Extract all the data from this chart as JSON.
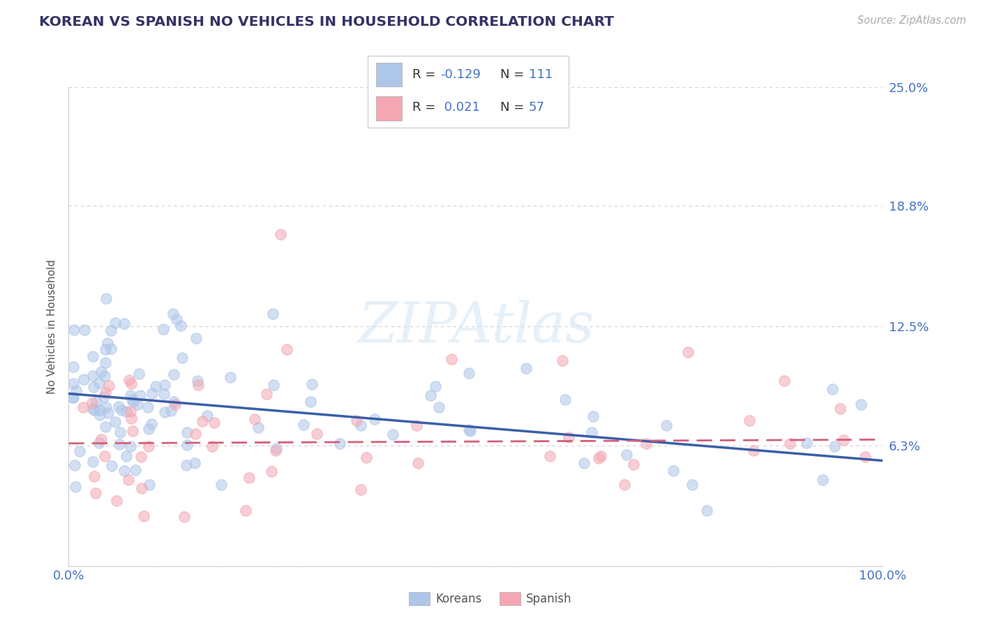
{
  "title": "KOREAN VS SPANISH NO VEHICLES IN HOUSEHOLD CORRELATION CHART",
  "source": "Source: ZipAtlas.com",
  "ylabel": "No Vehicles in Household",
  "legend_labels": [
    "Koreans",
    "Spanish"
  ],
  "legend_R": [
    "-0.129",
    "0.021"
  ],
  "legend_N": [
    "111",
    "57"
  ],
  "xlim": [
    0.0,
    1.0
  ],
  "ylim": [
    0.0,
    0.25
  ],
  "ytick_vals": [
    0.0,
    0.063,
    0.125,
    0.188,
    0.25
  ],
  "ytick_labels": [
    "",
    "6.3%",
    "12.5%",
    "18.8%",
    "25.0%"
  ],
  "xtick_labels": [
    "0.0%",
    "100.0%"
  ],
  "xticks": [
    0.0,
    1.0
  ],
  "korean_color": "#aec6e8",
  "spanish_color": "#f4a7b3",
  "korean_line_color": "#3a5fa8",
  "spanish_line_color": "#d45f7a",
  "background_color": "#ffffff",
  "title_color": "#333366",
  "axis_color": "#4472c4",
  "dot_size": 120,
  "dot_alpha": 0.55,
  "grid_color": "#cccccc"
}
